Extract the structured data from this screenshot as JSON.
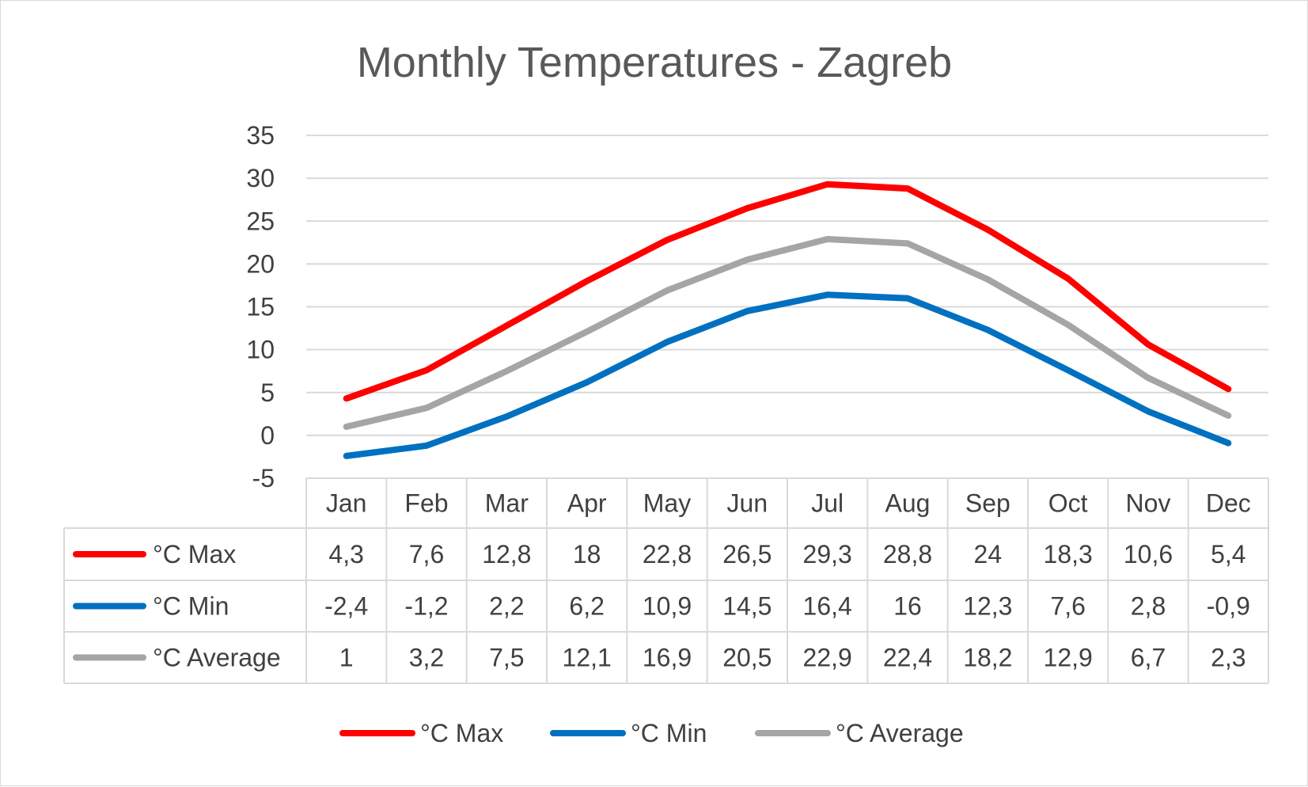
{
  "chart_data": {
    "type": "line",
    "title": "Monthly Temperatures - Zagreb",
    "categories": [
      "Jan",
      "Feb",
      "Mar",
      "Apr",
      "May",
      "Jun",
      "Jul",
      "Aug",
      "Sep",
      "Oct",
      "Nov",
      "Dec"
    ],
    "ylim": [
      -5,
      35
    ],
    "yticks": [
      "-5",
      "0",
      "5",
      "10",
      "15",
      "20",
      "25",
      "30",
      "35"
    ],
    "ytick_values": [
      -5,
      0,
      5,
      10,
      15,
      20,
      25,
      30,
      35
    ],
    "grid": true,
    "legend": "bottom",
    "data_table": true,
    "series": [
      {
        "name": "°C Max",
        "color": "#ff0000",
        "values": [
          4.3,
          7.6,
          12.8,
          18,
          22.8,
          26.5,
          29.3,
          28.8,
          24,
          18.3,
          10.6,
          5.4
        ],
        "labels": [
          "4,3",
          "7,6",
          "12,8",
          "18",
          "22,8",
          "26,5",
          "29,3",
          "28,8",
          "24",
          "18,3",
          "10,6",
          "5,4"
        ]
      },
      {
        "name": "°C Min",
        "color": "#0070c0",
        "values": [
          -2.4,
          -1.2,
          2.2,
          6.2,
          10.9,
          14.5,
          16.4,
          16,
          12.3,
          7.6,
          2.8,
          -0.9
        ],
        "labels": [
          "-2,4",
          "-1,2",
          "2,2",
          "6,2",
          "10,9",
          "14,5",
          "16,4",
          "16",
          "12,3",
          "7,6",
          "2,8",
          "-0,9"
        ]
      },
      {
        "name": "°C Average",
        "color": "#a5a5a5",
        "values": [
          1,
          3.2,
          7.5,
          12.1,
          16.9,
          20.5,
          22.9,
          22.4,
          18.2,
          12.9,
          6.7,
          2.3
        ],
        "labels": [
          "1",
          "3,2",
          "7,5",
          "12,1",
          "16,9",
          "20,5",
          "22,9",
          "22,4",
          "18,2",
          "12,9",
          "6,7",
          "2,3"
        ]
      }
    ]
  }
}
